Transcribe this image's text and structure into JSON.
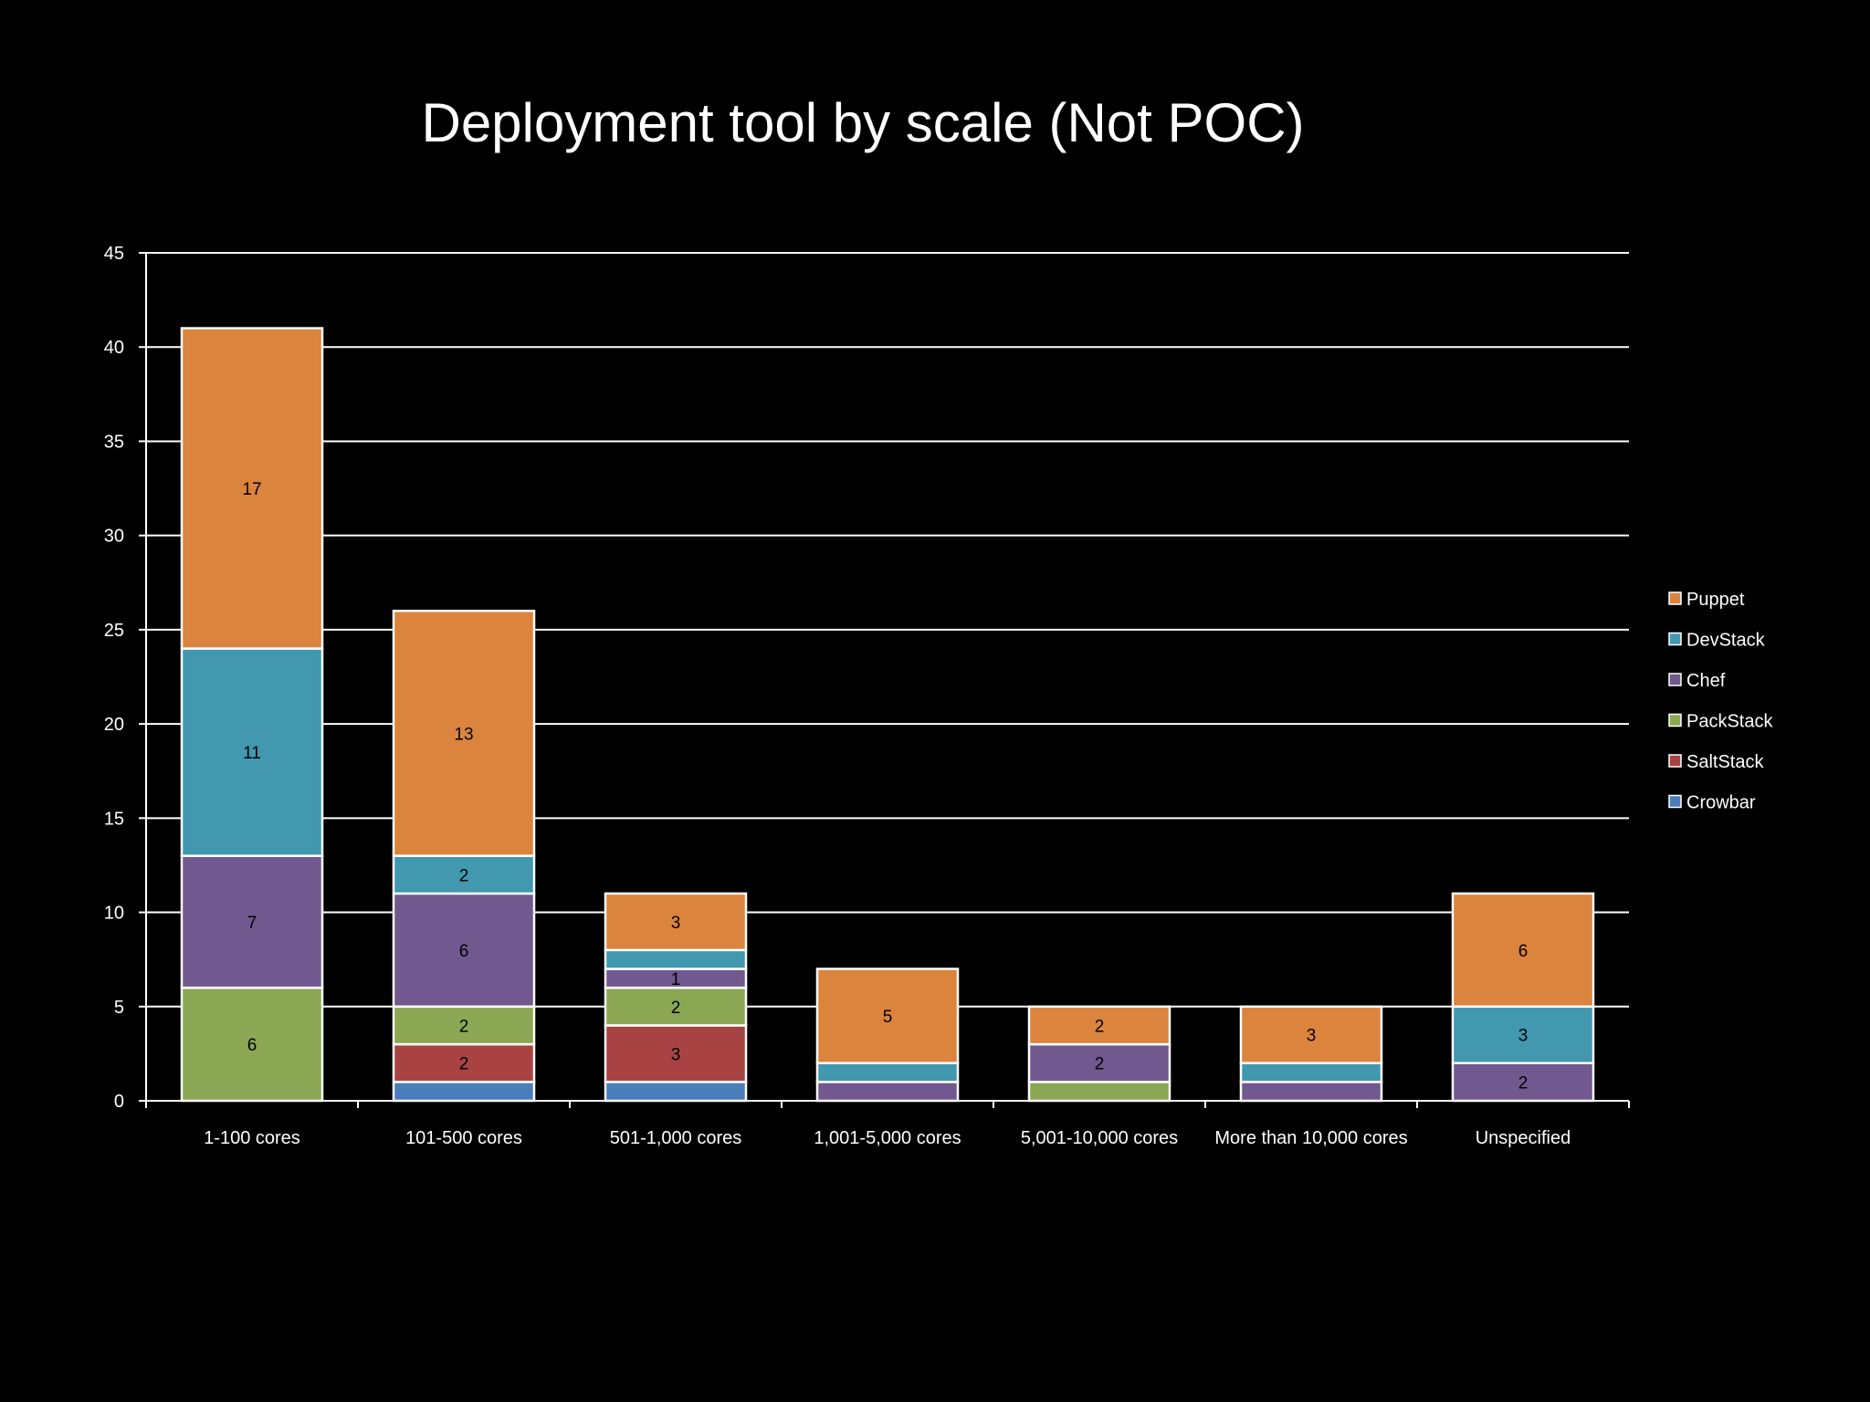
{
  "chart_data": {
    "type": "bar",
    "stacked": true,
    "title": "Deployment tool by scale (Not POC)",
    "xlabel": "",
    "ylabel": "",
    "ylim": [
      0,
      45
    ],
    "yticks": [
      0,
      5,
      10,
      15,
      20,
      25,
      30,
      35,
      40,
      45
    ],
    "grid": true,
    "legend_position": "right",
    "categories": [
      "1-100 cores",
      "101-500 cores",
      "501-1,000 cores",
      "1,001-5,000 cores",
      "5,001-10,000 cores",
      "More than 10,000 cores",
      "Unspecified"
    ],
    "series": [
      {
        "name": "Crowbar",
        "color": "#4A7EBB",
        "values": [
          0,
          1,
          1,
          0,
          0,
          0,
          0
        ],
        "labels": [
          null,
          null,
          null,
          null,
          null,
          null,
          null
        ]
      },
      {
        "name": "SaltStack",
        "color": "#A94343",
        "values": [
          0,
          2,
          3,
          0,
          0,
          0,
          0
        ],
        "labels": [
          null,
          "2",
          "3",
          null,
          null,
          null,
          null
        ]
      },
      {
        "name": "PackStack",
        "color": "#8BA753",
        "values": [
          6,
          2,
          2,
          0,
          1,
          0,
          0
        ],
        "labels": [
          "6",
          "2",
          "2",
          null,
          null,
          null,
          null
        ]
      },
      {
        "name": "Chef",
        "color": "#71588F",
        "values": [
          7,
          6,
          1,
          1,
          2,
          1,
          2
        ],
        "labels": [
          "7",
          "6",
          "1",
          null,
          "2",
          null,
          "2"
        ]
      },
      {
        "name": "DevStack",
        "color": "#4198AF",
        "values": [
          11,
          2,
          1,
          1,
          0,
          1,
          3
        ],
        "labels": [
          "11",
          "2",
          null,
          null,
          null,
          null,
          "3"
        ]
      },
      {
        "name": "Puppet",
        "color": "#DB843D",
        "values": [
          17,
          13,
          3,
          5,
          2,
          3,
          6
        ],
        "labels": [
          "17",
          "13",
          "3",
          "5",
          "2",
          "3",
          "6"
        ]
      }
    ],
    "legend_order": [
      "Puppet",
      "DevStack",
      "Chef",
      "PackStack",
      "SaltStack",
      "Crowbar"
    ]
  }
}
